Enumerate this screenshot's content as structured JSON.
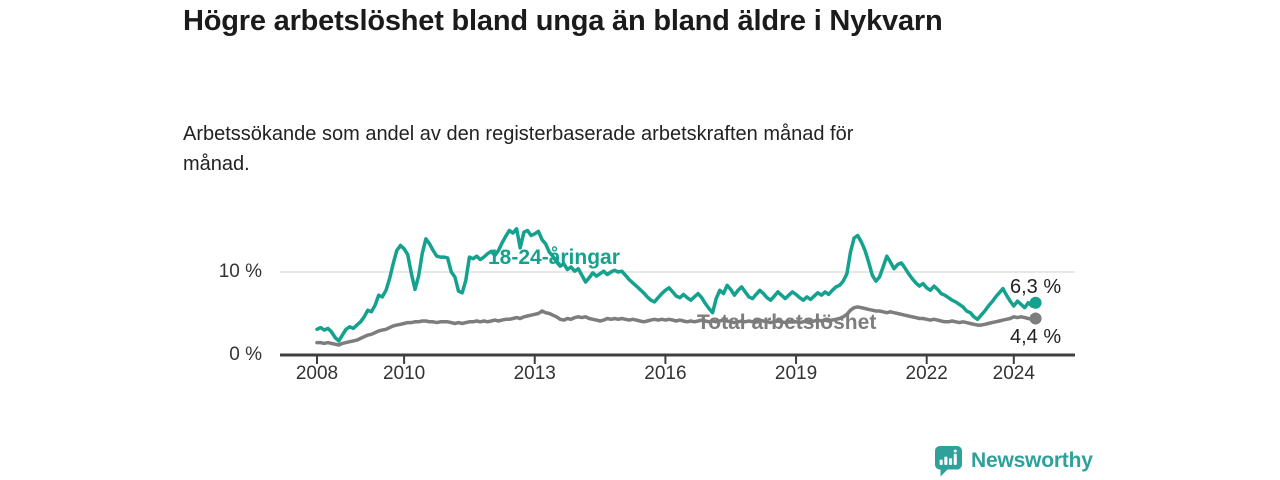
{
  "header": {
    "title": "Högre arbetslöshet bland unga än bland äldre i Nykvarn",
    "subtitle": "Arbetssökande som andel av den registerbaserade arbetskraften månad för månad."
  },
  "chart_data": {
    "type": "line",
    "title": "Högre arbetslöshet bland unga än bland äldre i Nykvarn",
    "x_unit": "month",
    "x_start": "2008-01",
    "x_end": "2024-07",
    "x_ticks": [
      2008,
      2010,
      2013,
      2016,
      2019,
      2022,
      2024
    ],
    "x_tick_labels": [
      "2008",
      "2010",
      "2013",
      "2016",
      "2019",
      "2022",
      "2024"
    ],
    "y_tick_labels": [
      "10 %",
      "0 %"
    ],
    "ylim": [
      0,
      16
    ],
    "grid": "single horizontal gridline at 10 %",
    "legend_position": "labels drawn on lines, end values labeled at right",
    "series": [
      {
        "name": "18-24-åringar",
        "color": "#14a18e",
        "end_value": 6.3,
        "end_label": "6,3 %",
        "values": [
          3.1,
          3.3,
          3.0,
          3.2,
          2.8,
          2.1,
          1.7,
          2.4,
          3.1,
          3.4,
          3.2,
          3.6,
          4.0,
          4.6,
          5.4,
          5.2,
          6.0,
          7.2,
          7.0,
          7.8,
          9.2,
          11.0,
          12.6,
          13.2,
          12.8,
          12.1,
          9.8,
          7.9,
          9.5,
          12.2,
          14.0,
          13.4,
          12.6,
          11.9,
          11.8,
          11.8,
          11.7,
          10.0,
          9.4,
          7.7,
          7.5,
          9.0,
          11.8,
          11.6,
          11.9,
          11.5,
          11.8,
          12.2,
          12.5,
          12.0,
          12.6,
          13.5,
          14.3,
          15.0,
          14.7,
          15.2,
          12.9,
          14.8,
          15.0,
          14.4,
          14.6,
          14.9,
          13.9,
          13.4,
          12.4,
          11.9,
          11.2,
          10.7,
          11.0,
          10.3,
          10.6,
          10.1,
          10.4,
          9.6,
          8.8,
          9.3,
          9.9,
          9.5,
          9.8,
          10.1,
          9.7,
          10.0,
          10.2,
          10.0,
          10.1,
          9.6,
          9.1,
          8.7,
          8.3,
          7.9,
          7.5,
          7.0,
          6.6,
          6.4,
          6.9,
          7.4,
          7.8,
          8.1,
          7.6,
          7.1,
          6.9,
          7.3,
          6.9,
          6.6,
          7.0,
          7.4,
          6.9,
          6.2,
          5.6,
          5.1,
          6.8,
          7.8,
          7.4,
          8.4,
          7.9,
          7.2,
          7.8,
          8.2,
          7.6,
          7.0,
          6.8,
          7.3,
          7.8,
          7.4,
          6.9,
          6.6,
          7.1,
          7.6,
          7.2,
          6.8,
          7.2,
          7.6,
          7.3,
          6.9,
          6.6,
          7.0,
          6.7,
          7.1,
          7.5,
          7.2,
          7.6,
          7.3,
          7.8,
          8.2,
          8.4,
          8.9,
          9.8,
          12.4,
          14.1,
          14.4,
          13.6,
          12.6,
          11.2,
          9.6,
          8.9,
          9.4,
          10.6,
          11.9,
          11.2,
          10.4,
          10.9,
          11.1,
          10.5,
          9.8,
          9.2,
          8.7,
          8.3,
          8.6,
          8.1,
          7.8,
          8.3,
          7.9,
          7.4,
          7.2,
          6.9,
          6.6,
          6.4,
          6.1,
          5.8,
          5.3,
          5.1,
          4.6,
          4.3,
          4.8,
          5.3,
          5.9,
          6.4,
          7.0,
          7.5,
          8.0,
          7.2,
          6.5,
          5.9,
          6.5,
          6.1,
          5.7,
          6.3,
          5.9,
          6.3
        ]
      },
      {
        "name": "Total arbetslöshet",
        "color": "#7d7d7d",
        "end_value": 4.4,
        "end_label": "4,4 %",
        "values": [
          1.5,
          1.5,
          1.4,
          1.5,
          1.4,
          1.3,
          1.2,
          1.4,
          1.5,
          1.6,
          1.7,
          1.8,
          2.0,
          2.2,
          2.4,
          2.5,
          2.7,
          2.9,
          3.0,
          3.1,
          3.3,
          3.5,
          3.6,
          3.7,
          3.8,
          3.9,
          3.9,
          4.0,
          4.0,
          4.1,
          4.1,
          4.0,
          4.0,
          3.9,
          4.0,
          4.0,
          4.0,
          3.9,
          3.8,
          3.9,
          3.8,
          3.9,
          4.0,
          4.0,
          4.1,
          4.0,
          4.1,
          4.0,
          4.1,
          4.2,
          4.1,
          4.2,
          4.3,
          4.3,
          4.4,
          4.5,
          4.4,
          4.6,
          4.7,
          4.8,
          4.9,
          5.0,
          5.3,
          5.1,
          5.0,
          4.8,
          4.6,
          4.3,
          4.2,
          4.4,
          4.3,
          4.5,
          4.6,
          4.5,
          4.6,
          4.4,
          4.3,
          4.2,
          4.1,
          4.2,
          4.4,
          4.3,
          4.4,
          4.3,
          4.4,
          4.3,
          4.2,
          4.3,
          4.2,
          4.1,
          4.0,
          4.1,
          4.2,
          4.3,
          4.2,
          4.3,
          4.2,
          4.3,
          4.2,
          4.1,
          4.2,
          4.1,
          4.0,
          4.1,
          4.0,
          4.1,
          4.2,
          4.1,
          4.0,
          4.1,
          4.0,
          4.1,
          4.2,
          4.1,
          4.0,
          3.9,
          4.0,
          4.1,
          4.0,
          4.1,
          4.0,
          4.1,
          4.2,
          4.1,
          4.0,
          3.9,
          4.0,
          4.1,
          4.0,
          3.9,
          4.0,
          4.1,
          4.0,
          3.9,
          4.0,
          4.1,
          4.0,
          4.1,
          4.2,
          4.1,
          4.2,
          4.1,
          4.2,
          4.3,
          4.4,
          4.6,
          4.9,
          5.4,
          5.7,
          5.8,
          5.7,
          5.6,
          5.5,
          5.4,
          5.3,
          5.3,
          5.2,
          5.1,
          5.2,
          5.1,
          5.0,
          4.9,
          4.8,
          4.7,
          4.6,
          4.5,
          4.4,
          4.4,
          4.3,
          4.2,
          4.3,
          4.2,
          4.1,
          4.0,
          4.0,
          4.1,
          4.0,
          3.9,
          4.0,
          3.9,
          3.8,
          3.7,
          3.6,
          3.6,
          3.7,
          3.8,
          3.9,
          4.0,
          4.1,
          4.2,
          4.3,
          4.4,
          4.6,
          4.5,
          4.6,
          4.5,
          4.4,
          4.3,
          4.4
        ]
      }
    ],
    "colors": {
      "axis": "#3f3f3f",
      "gridline": "#d9d9d9",
      "tick_text": "#333333"
    }
  },
  "branding": {
    "name": "Newsworthy",
    "color": "#2ea19a",
    "icon": "bar-chart-speech-bubble-icon"
  }
}
